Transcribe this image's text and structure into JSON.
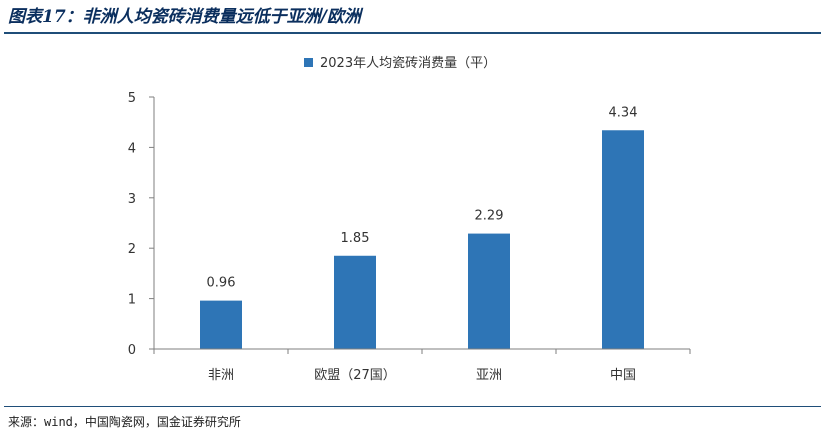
{
  "figure": {
    "title": "图表17：非洲人均瓷砖消费量远低于亚洲/欧洲",
    "source": "来源：wind，中国陶瓷网，国金证券研究所"
  },
  "chart_data": {
    "type": "bar",
    "categories": [
      "非洲",
      "欧盟（27国）",
      "亚洲",
      "中国"
    ],
    "series": [
      {
        "name": "2023年人均瓷砖消费量（平）",
        "values": [
          0.96,
          1.85,
          2.29,
          4.34
        ],
        "color": "#2e75b6"
      }
    ],
    "data_labels": [
      "0.96",
      "1.85",
      "2.29",
      "4.34"
    ],
    "yticks": [
      "0",
      "1",
      "2",
      "3",
      "4",
      "5"
    ],
    "ylim": [
      0,
      5
    ],
    "grid": false,
    "legend_position": "top-center",
    "axis_color": "#7f7f7f"
  }
}
